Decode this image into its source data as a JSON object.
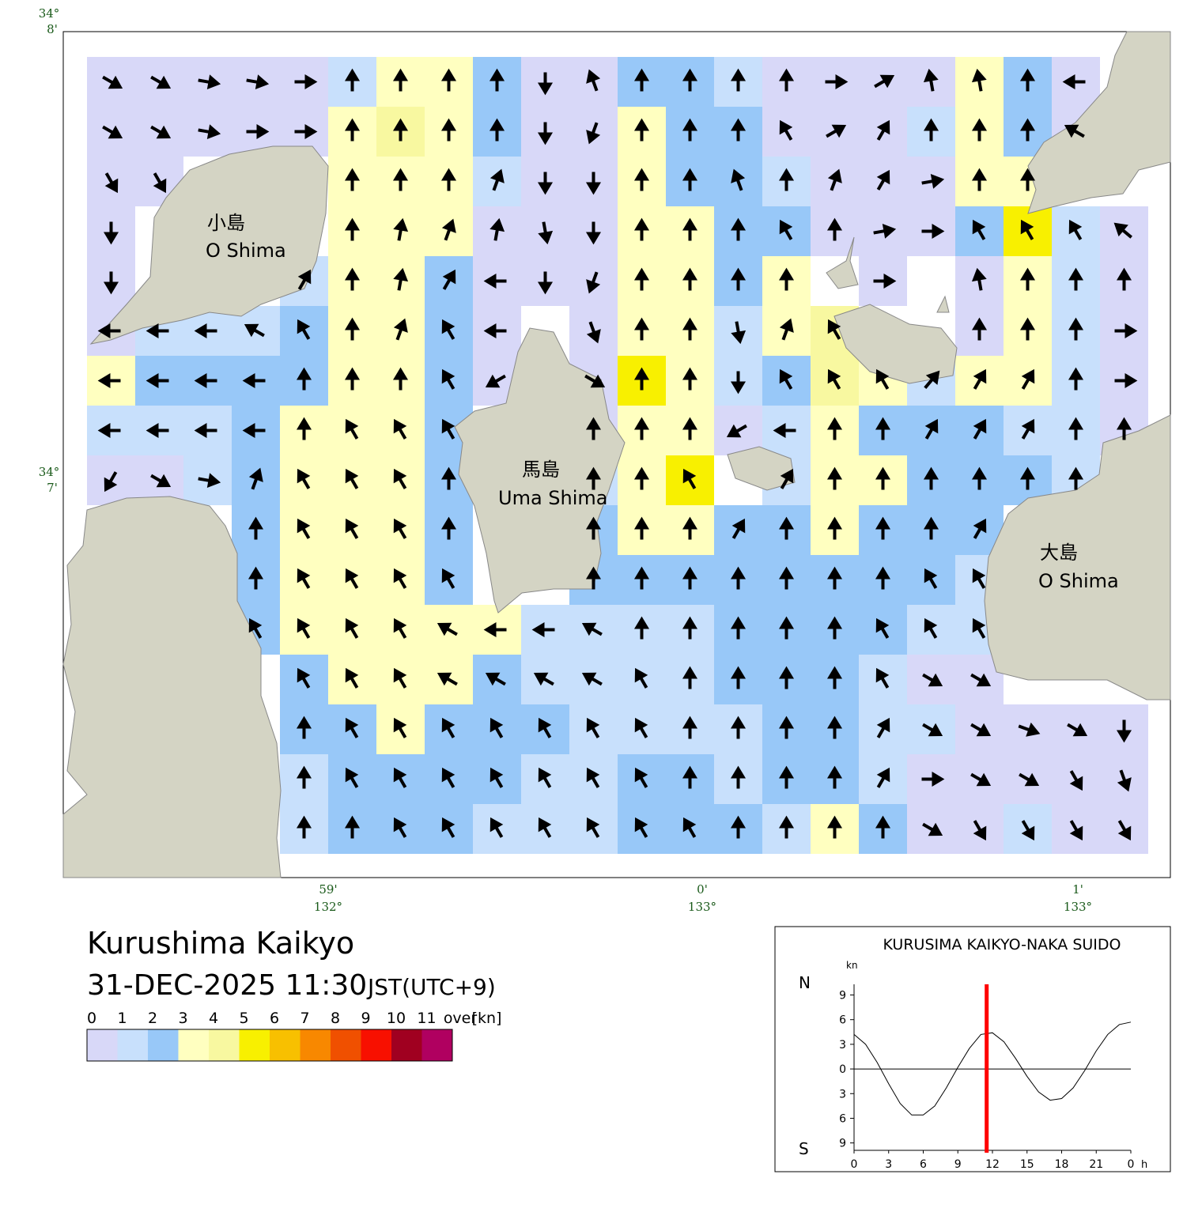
{
  "map": {
    "title": "Kurushima Kaikyo",
    "datetime": "31-DEC-2025 11:30",
    "timezone": "JST(UTC+9)",
    "axes": {
      "lat": [
        {
          "deg": "34°",
          "min": "8'"
        },
        {
          "deg": "34°",
          "min": "7'"
        }
      ],
      "lon": [
        {
          "min": "59'",
          "deg": "132°"
        },
        {
          "min": "0'",
          "deg": "133°"
        },
        {
          "min": "1'",
          "deg": "133°"
        }
      ]
    },
    "places": [
      {
        "ja": "小島",
        "en": "O Shima"
      },
      {
        "ja": "馬島",
        "en": "Uma Shima"
      },
      {
        "ja": "大島",
        "en": "O Shima"
      }
    ],
    "legend": {
      "labels": [
        "0",
        "1",
        "2",
        "3",
        "4",
        "5",
        "6",
        "7",
        "8",
        "9",
        "10",
        "11",
        "over"
      ],
      "unit": "[kn]",
      "colors": [
        "#d8d8f8",
        "#c8e0fc",
        "#98c8f8",
        "#ffffc0",
        "#f8f8a0",
        "#f8f000",
        "#f8c000",
        "#f88800",
        "#f05000",
        "#f81000",
        "#a00020",
        "#b00060"
      ]
    },
    "current": {
      "speed": [
        [
          0.5,
          0.5,
          0.5,
          0.5,
          0.5,
          1.5,
          3.5,
          3.5,
          2.5,
          0.5,
          0.5,
          2.5,
          2.5,
          1.5,
          0.5,
          0.5,
          0.5,
          0.5,
          3.5,
          2.5,
          0.5,
          null
        ],
        [
          0.5,
          0.5,
          0.5,
          0.5,
          0.5,
          3.5,
          4.5,
          3.5,
          2.5,
          0.5,
          0.5,
          3.5,
          2.5,
          2.5,
          0.5,
          0.5,
          0.5,
          1.5,
          3.5,
          2.5,
          0.5,
          null
        ],
        [
          0.5,
          0.5,
          null,
          null,
          null,
          3.5,
          3.5,
          3.5,
          1.5,
          0.5,
          0.5,
          3.5,
          2.5,
          2.5,
          1.5,
          0.5,
          0.5,
          0.5,
          3.5,
          3.5,
          null,
          null
        ],
        [
          0.5,
          null,
          null,
          null,
          null,
          3.5,
          3.5,
          3.5,
          0.5,
          0.5,
          0.5,
          3.5,
          3.5,
          2.5,
          2.5,
          0.5,
          0.5,
          0.5,
          2.5,
          5.5,
          1.5,
          0.5
        ],
        [
          0.5,
          null,
          null,
          null,
          1.5,
          3.5,
          3.5,
          2.5,
          0.5,
          0.5,
          0.5,
          3.5,
          3.5,
          2.5,
          3.5,
          null,
          0.5,
          null,
          0.5,
          3.5,
          1.5,
          0.5
        ],
        [
          0.5,
          1.5,
          1.5,
          1.5,
          2.5,
          3.5,
          3.5,
          2.5,
          0.5,
          null,
          0.5,
          3.5,
          3.5,
          1.5,
          3.5,
          4.5,
          null,
          null,
          0.5,
          3.5,
          1.5,
          0.5
        ],
        [
          3.5,
          2.5,
          2.5,
          2.5,
          2.5,
          3.5,
          3.5,
          2.5,
          0.5,
          null,
          0.5,
          5.5,
          3.5,
          1.5,
          2.5,
          4.5,
          3.5,
          1.5,
          3.5,
          3.5,
          1.5,
          0.5
        ],
        [
          1.5,
          1.5,
          1.5,
          2.5,
          3.5,
          3.5,
          3.5,
          2.5,
          null,
          null,
          0.5,
          3.5,
          3.5,
          0.5,
          1.5,
          3.5,
          2.5,
          2.5,
          2.5,
          1.5,
          1.5,
          0.5
        ],
        [
          0.5,
          0.5,
          1.5,
          2.5,
          3.5,
          3.5,
          3.5,
          2.5,
          null,
          null,
          1.5,
          3.5,
          5.5,
          null,
          1.5,
          3.5,
          3.5,
          2.5,
          2.5,
          2.5,
          1.5,
          null
        ],
        [
          null,
          null,
          null,
          2.5,
          3.5,
          3.5,
          3.5,
          2.5,
          null,
          null,
          2.5,
          3.5,
          3.5,
          2.5,
          2.5,
          3.5,
          2.5,
          2.5,
          2.5,
          null,
          null,
          null
        ],
        [
          null,
          null,
          null,
          2.5,
          3.5,
          3.5,
          3.5,
          2.5,
          null,
          null,
          2.5,
          2.5,
          2.5,
          2.5,
          2.5,
          2.5,
          2.5,
          2.5,
          1.5,
          null,
          null,
          null
        ],
        [
          null,
          null,
          null,
          2.5,
          3.5,
          3.5,
          3.5,
          3.5,
          3.5,
          1.5,
          1.5,
          1.5,
          1.5,
          2.5,
          2.5,
          2.5,
          2.5,
          1.5,
          1.5,
          null,
          null,
          null
        ],
        [
          null,
          null,
          null,
          null,
          2.5,
          3.5,
          3.5,
          3.5,
          2.5,
          1.5,
          1.5,
          1.5,
          1.5,
          2.5,
          2.5,
          2.5,
          1.5,
          0.5,
          0.5,
          null,
          null,
          null
        ],
        [
          null,
          null,
          null,
          null,
          2.5,
          2.5,
          3.5,
          2.5,
          2.5,
          2.5,
          1.5,
          1.5,
          1.5,
          1.5,
          2.5,
          2.5,
          1.5,
          1.5,
          0.5,
          0.5,
          0.5,
          0.5
        ],
        [
          null,
          null,
          null,
          null,
          1.5,
          2.5,
          2.5,
          2.5,
          2.5,
          1.5,
          1.5,
          2.5,
          2.5,
          1.5,
          2.5,
          2.5,
          1.5,
          0.5,
          0.5,
          0.5,
          0.5,
          0.5
        ],
        [
          null,
          null,
          null,
          null,
          1.5,
          2.5,
          2.5,
          2.5,
          1.5,
          1.5,
          1.5,
          2.5,
          2.5,
          2.5,
          1.5,
          3.5,
          2.5,
          0.5,
          0.5,
          1.5,
          0.5,
          0.5
        ]
      ],
      "direction": [
        [
          120,
          120,
          100,
          100,
          90,
          0,
          0,
          0,
          0,
          180,
          340,
          0,
          0,
          0,
          0,
          90,
          60,
          350,
          350,
          0,
          270,
          null
        ],
        [
          120,
          120,
          100,
          90,
          90,
          0,
          0,
          0,
          0,
          180,
          200,
          0,
          0,
          0,
          330,
          60,
          30,
          0,
          0,
          0,
          300,
          null
        ],
        [
          150,
          150,
          null,
          null,
          null,
          0,
          0,
          0,
          20,
          180,
          180,
          0,
          0,
          340,
          0,
          20,
          30,
          80,
          0,
          0,
          null,
          null
        ],
        [
          180,
          null,
          null,
          null,
          null,
          0,
          10,
          20,
          10,
          170,
          180,
          0,
          0,
          0,
          330,
          0,
          80,
          90,
          330,
          330,
          330,
          310
        ],
        [
          180,
          null,
          null,
          null,
          30,
          0,
          10,
          30,
          270,
          180,
          200,
          0,
          0,
          0,
          0,
          null,
          90,
          null,
          350,
          0,
          0,
          0
        ],
        [
          270,
          270,
          270,
          300,
          330,
          0,
          20,
          330,
          270,
          null,
          160,
          0,
          0,
          170,
          20,
          330,
          null,
          null,
          0,
          0,
          0,
          90
        ],
        [
          270,
          270,
          270,
          270,
          0,
          0,
          0,
          330,
          240,
          null,
          120,
          0,
          0,
          180,
          330,
          330,
          330,
          40,
          30,
          30,
          0,
          90
        ],
        [
          270,
          270,
          270,
          270,
          0,
          330,
          330,
          330,
          null,
          null,
          0,
          0,
          0,
          240,
          270,
          0,
          0,
          30,
          30,
          30,
          0,
          0
        ],
        [
          210,
          120,
          100,
          20,
          330,
          330,
          330,
          0,
          null,
          null,
          0,
          0,
          330,
          null,
          30,
          0,
          0,
          0,
          0,
          0,
          0,
          null
        ],
        [
          null,
          null,
          null,
          0,
          330,
          330,
          330,
          0,
          null,
          null,
          0,
          0,
          0,
          30,
          0,
          0,
          0,
          0,
          30,
          null,
          null,
          null
        ],
        [
          null,
          null,
          null,
          0,
          330,
          330,
          330,
          330,
          null,
          null,
          0,
          0,
          0,
          0,
          0,
          0,
          0,
          330,
          330,
          null,
          null,
          null
        ],
        [
          null,
          null,
          null,
          330,
          330,
          330,
          330,
          300,
          270,
          270,
          300,
          0,
          0,
          0,
          0,
          0,
          330,
          330,
          330,
          null,
          null,
          null
        ],
        [
          null,
          null,
          null,
          null,
          330,
          330,
          330,
          300,
          300,
          300,
          300,
          330,
          0,
          0,
          0,
          0,
          330,
          120,
          120,
          null,
          null,
          null
        ],
        [
          null,
          null,
          null,
          null,
          0,
          330,
          330,
          330,
          330,
          330,
          330,
          330,
          0,
          0,
          0,
          0,
          30,
          120,
          120,
          110,
          120,
          180
        ],
        [
          null,
          null,
          null,
          null,
          0,
          330,
          330,
          330,
          330,
          330,
          330,
          330,
          0,
          0,
          0,
          0,
          30,
          90,
          120,
          120,
          150,
          160
        ],
        [
          null,
          null,
          null,
          null,
          0,
          0,
          330,
          330,
          330,
          330,
          330,
          330,
          330,
          0,
          0,
          0,
          0,
          120,
          150,
          150,
          150,
          150
        ]
      ]
    }
  },
  "chart_data": {
    "type": "line",
    "title": "KURUSIMA KAIKYO-NAKA SUIDO",
    "unit": "kn",
    "north_label": "N",
    "south_label": "S",
    "x_unit": "h",
    "x": [
      0,
      1,
      2,
      3,
      4,
      5,
      6,
      7,
      8,
      9,
      10,
      11,
      12,
      13,
      14,
      15,
      16,
      17,
      18,
      19,
      20,
      21,
      22,
      23,
      24
    ],
    "values": [
      4.2,
      3.0,
      0.8,
      -1.8,
      -4.2,
      -5.6,
      -5.6,
      -4.5,
      -2.3,
      0.2,
      2.5,
      4.2,
      4.4,
      3.3,
      1.3,
      -0.9,
      -2.8,
      -3.8,
      -3.6,
      -2.3,
      -0.2,
      2.2,
      4.2,
      5.4,
      5.7
    ],
    "color": "#000000",
    "current_time": 11.5,
    "marker_color": "#ff0000",
    "xlim": [
      0,
      24
    ],
    "xticks": [
      0,
      3,
      6,
      9,
      12,
      15,
      18,
      21,
      {
        "value": 24,
        "label": "0"
      }
    ],
    "ylim": [
      -9.9,
      10.3
    ],
    "yticks": [
      9,
      6,
      3,
      0,
      {
        "value": -3,
        "label": "3"
      },
      {
        "value": -6,
        "label": "6"
      },
      {
        "value": -9,
        "label": "9"
      }
    ]
  }
}
